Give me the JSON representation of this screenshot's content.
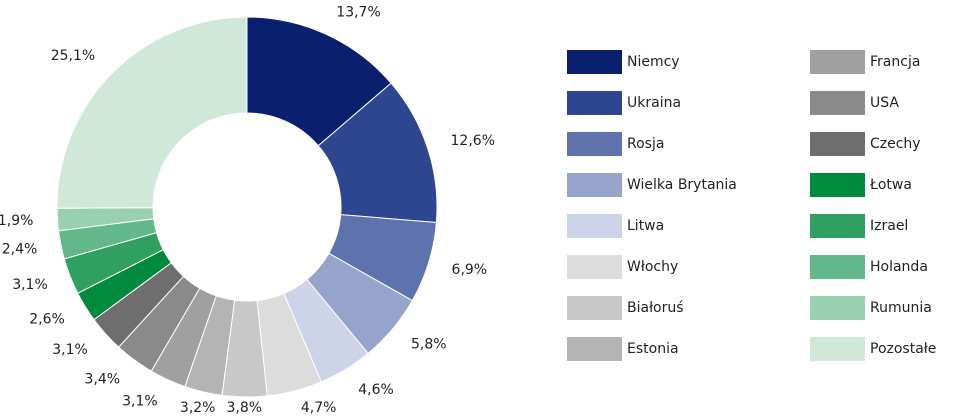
{
  "chart_data": {
    "type": "pie",
    "categories": [
      "Niemcy",
      "Ukraina",
      "Rosja",
      "Wielka Brytania",
      "Litwa",
      "Włochy",
      "Białoruś",
      "Estonia",
      "Francja",
      "USA",
      "Czechy",
      "Łotwa",
      "Izrael",
      "Holanda",
      "Rumunia",
      "Pozostałe"
    ],
    "values": [
      13.7,
      12.6,
      6.9,
      5.8,
      4.6,
      4.7,
      3.8,
      3.2,
      3.1,
      3.4,
      3.1,
      2.6,
      3.1,
      2.4,
      1.9,
      25.1
    ],
    "value_labels": [
      "13,7%",
      "12,6%",
      "6,9%",
      "5,8%",
      "4,6%",
      "4,7%",
      "3,8%",
      "3,2%",
      "3,1%",
      "3,4%",
      "3,1%",
      "2,6%",
      "3,1%",
      "2,4%",
      "1,9%",
      "25,1%"
    ],
    "colors": [
      "#0a1f6e",
      "#2e4590",
      "#5e72ad",
      "#96a4cc",
      "#cdd3e8",
      "#dcdcdc",
      "#c8c8c8",
      "#b4b4b4",
      "#a0a0a0",
      "#8a8a8a",
      "#6e6e6e",
      "#008a3e",
      "#30a060",
      "#62b88a",
      "#9ad0b2",
      "#cfe8da"
    ]
  }
}
